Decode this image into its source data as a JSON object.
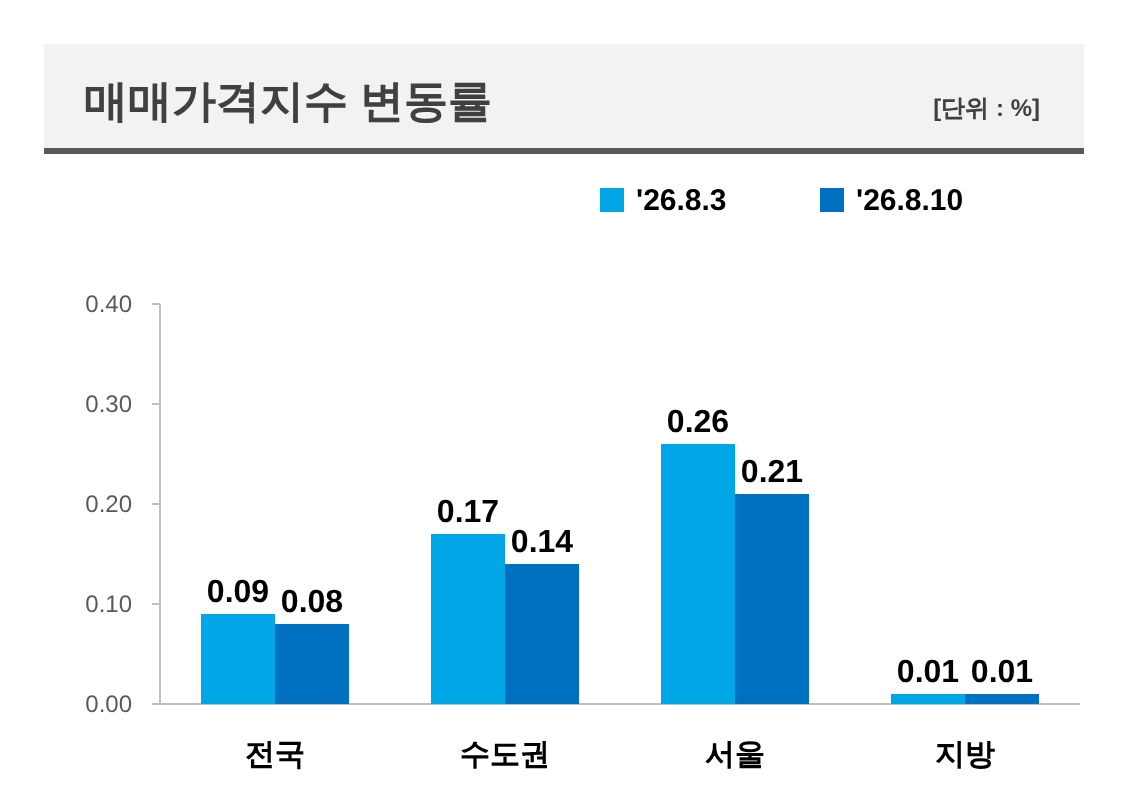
{
  "chart_data": {
    "type": "bar",
    "title": "매매가격지수 변동률",
    "annotations": [
      "[단위 : %]"
    ],
    "categories": [
      "전국",
      "수도권",
      "서울",
      "지방"
    ],
    "series": [
      {
        "name": "'26.8.3",
        "color": "#00a6e6",
        "values": [
          0.09,
          0.17,
          0.26,
          0.01
        ]
      },
      {
        "name": "'26.8.10",
        "color": "#0070c0",
        "values": [
          0.08,
          0.14,
          0.21,
          0.01
        ]
      }
    ],
    "ylim": [
      0,
      0.4
    ],
    "yticks": [
      {
        "value": 0,
        "label": "0.00"
      },
      {
        "value": 0.1,
        "label": "0.10"
      },
      {
        "value": 0.2,
        "label": "0.20"
      },
      {
        "value": 0.3,
        "label": "0.30"
      },
      {
        "value": 0.4,
        "label": "0.40"
      }
    ],
    "data_labels": true,
    "legend": "top right",
    "grid": false
  }
}
